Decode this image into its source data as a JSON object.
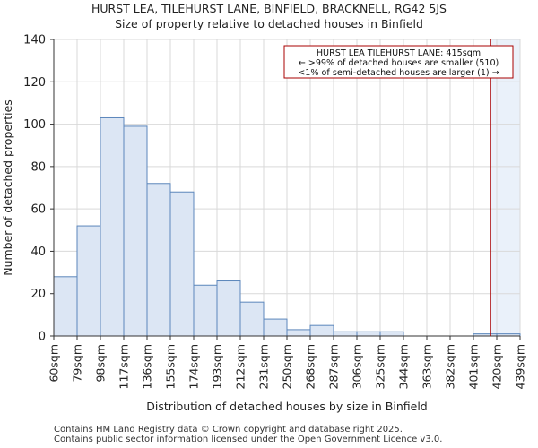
{
  "chart_data": {
    "type": "bar",
    "title": "HURST LEA, TILEHURST LANE, BINFIELD, BRACKNELL, RG42 5JS",
    "subtitle": "Size of property relative to detached houses in Binfield",
    "xlabel": "Distribution of detached houses by size in Binfield",
    "ylabel": "Number of detached properties",
    "ylim": [
      0,
      140
    ],
    "yticks": [
      0,
      20,
      40,
      60,
      80,
      100,
      120,
      140
    ],
    "bin_edges": [
      "60sqm",
      "79sqm",
      "98sqm",
      "117sqm",
      "136sqm",
      "155sqm",
      "174sqm",
      "193sqm",
      "212sqm",
      "231sqm",
      "250sqm",
      "268sqm",
      "287sqm",
      "306sqm",
      "325sqm",
      "344sqm",
      "363sqm",
      "382sqm",
      "401sqm",
      "420sqm",
      "439sqm"
    ],
    "values": [
      28,
      52,
      103,
      99,
      72,
      68,
      24,
      26,
      16,
      8,
      3,
      5,
      2,
      2,
      2,
      0,
      0,
      0,
      1,
      1
    ],
    "grid": true,
    "marker": {
      "value_sqm": 415,
      "color": "#aa0000"
    },
    "annotation": {
      "line1": "HURST LEA TILEHURST LANE: 415sqm",
      "line2": "← >99% of detached houses are smaller (510)",
      "line3": "<1% of semi-detached houses are larger (1) →",
      "placement": "top-right"
    },
    "colors": {
      "bar_fill": "#dce6f4",
      "bar_edge": "#5b86bb",
      "grid": "#d9d9d9",
      "axis": "#333333",
      "highlight_region": "#eaf1fa"
    }
  },
  "footer": {
    "line1": "Contains HM Land Registry data © Crown copyright and database right 2025.",
    "line2": "Contains public sector information licensed under the Open Government Licence v3.0."
  }
}
